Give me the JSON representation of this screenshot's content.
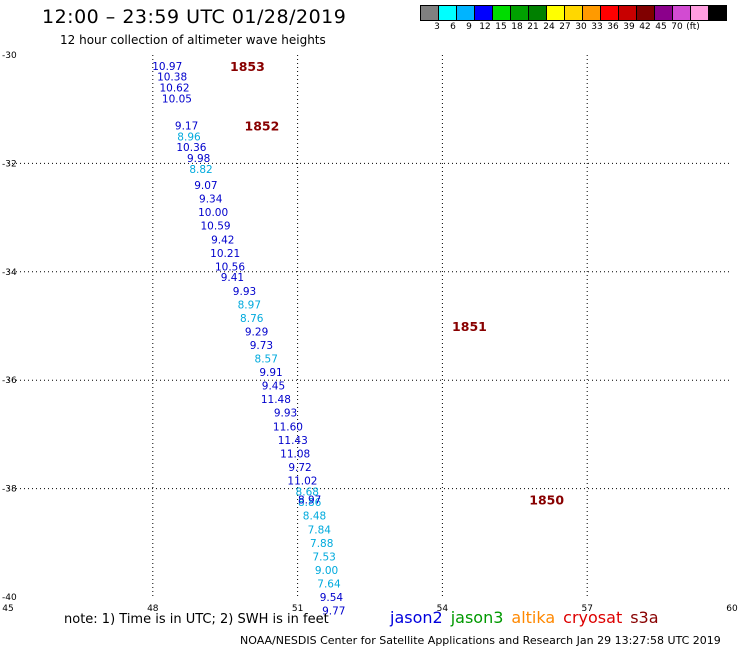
{
  "header": {
    "title": "12:00 – 23:59 UTC 01/28/2019",
    "subtitle": "12 hour collection of altimeter wave heights"
  },
  "legend": {
    "colors": [
      "#808080",
      "#00ffff",
      "#00b4ff",
      "#0000ff",
      "#00dc00",
      "#00a000",
      "#008000",
      "#ffff00",
      "#ffd700",
      "#ff9a00",
      "#ff0000",
      "#c80000",
      "#800000",
      "#8b008b",
      "#d24bd2",
      "#ff9ee0",
      "#000000"
    ],
    "labels": [
      "3",
      "6",
      "9",
      "12",
      "15",
      "18",
      "21",
      "24",
      "27",
      "30",
      "33",
      "36",
      "39",
      "42",
      "45",
      "70",
      "(ft)"
    ]
  },
  "note": "note:  1) Time is in UTC;  2) SWH is in feet",
  "satellites": [
    {
      "name": "jason2",
      "color": "#0000dd"
    },
    {
      "name": "jason3",
      "color": "#009900"
    },
    {
      "name": "altika",
      "color": "#ff8800"
    },
    {
      "name": "cryosat",
      "color": "#dd0000"
    },
    {
      "name": "s3a",
      "color": "#880000"
    }
  ],
  "footer": "NOAA/NESDIS Center for Satellite Applications and Research      Jan 29 13:27:58 UTC 2019",
  "chart_data": {
    "type": "scatter",
    "x_ticks": [
      "45",
      "48",
      "51",
      "54",
      "57",
      "60"
    ],
    "y_ticks": [
      "-30",
      "-32",
      "-34",
      "-36",
      "-38",
      "-40"
    ],
    "xlim": [
      45,
      60
    ],
    "ylim": [
      -40,
      -30
    ],
    "grid": true,
    "time_labels": [
      {
        "text": "1853",
        "lon": 49.6,
        "lat": -30.2
      },
      {
        "text": "1852",
        "lon": 49.9,
        "lat": -31.3
      },
      {
        "text": "1851",
        "lon": 54.2,
        "lat": -35.0
      },
      {
        "text": "1850",
        "lon": 55.8,
        "lat": -38.2
      }
    ],
    "points": [
      {
        "v": "10.97",
        "lon": 48.3,
        "lat": -30.2,
        "c": "#0000cc"
      },
      {
        "v": "10.38",
        "lon": 48.4,
        "lat": -30.4,
        "c": "#0000cc"
      },
      {
        "v": "10.62",
        "lon": 48.45,
        "lat": -30.6,
        "c": "#0000cc"
      },
      {
        "v": "10.05",
        "lon": 48.5,
        "lat": -30.8,
        "c": "#0000cc"
      },
      {
        "v": "9.17",
        "lon": 48.7,
        "lat": -31.3,
        "c": "#0000cc"
      },
      {
        "v": "8.96",
        "lon": 48.75,
        "lat": -31.5,
        "c": "#00aadd"
      },
      {
        "v": "10.36",
        "lon": 48.8,
        "lat": -31.7,
        "c": "#0000cc"
      },
      {
        "v": "9.98",
        "lon": 48.95,
        "lat": -31.9,
        "c": "#0000cc"
      },
      {
        "v": "8.82",
        "lon": 49.0,
        "lat": -32.1,
        "c": "#00aadd"
      },
      {
        "v": "9.07",
        "lon": 49.1,
        "lat": -32.4,
        "c": "#0000cc"
      },
      {
        "v": "9.34",
        "lon": 49.2,
        "lat": -32.65,
        "c": "#0000cc"
      },
      {
        "v": "10.00",
        "lon": 49.25,
        "lat": -32.9,
        "c": "#0000cc"
      },
      {
        "v": "10.59",
        "lon": 49.3,
        "lat": -33.15,
        "c": "#0000cc"
      },
      {
        "v": "9.42",
        "lon": 49.45,
        "lat": -33.4,
        "c": "#0000cc"
      },
      {
        "v": "10.21",
        "lon": 49.5,
        "lat": -33.65,
        "c": "#0000cc"
      },
      {
        "v": "10.56",
        "lon": 49.6,
        "lat": -33.9,
        "c": "#0000cc"
      },
      {
        "v": "9.41",
        "lon": 49.65,
        "lat": -34.1,
        "c": "#0000cc"
      },
      {
        "v": "9.93",
        "lon": 49.9,
        "lat": -34.35,
        "c": "#0000cc"
      },
      {
        "v": "8.97",
        "lon": 50.0,
        "lat": -34.6,
        "c": "#00aadd"
      },
      {
        "v": "8.76",
        "lon": 50.05,
        "lat": -34.85,
        "c": "#00aadd"
      },
      {
        "v": "9.29",
        "lon": 50.15,
        "lat": -35.1,
        "c": "#0000cc"
      },
      {
        "v": "9.73",
        "lon": 50.25,
        "lat": -35.35,
        "c": "#0000cc"
      },
      {
        "v": "8.57",
        "lon": 50.35,
        "lat": -35.6,
        "c": "#00aadd"
      },
      {
        "v": "9.91",
        "lon": 50.45,
        "lat": -35.85,
        "c": "#0000cc"
      },
      {
        "v": "9.45",
        "lon": 50.5,
        "lat": -36.1,
        "c": "#0000cc"
      },
      {
        "v": "11.48",
        "lon": 50.55,
        "lat": -36.35,
        "c": "#0000cc"
      },
      {
        "v": "9.93",
        "lon": 50.75,
        "lat": -36.6,
        "c": "#0000cc"
      },
      {
        "v": "11.60",
        "lon": 50.8,
        "lat": -36.85,
        "c": "#0000cc"
      },
      {
        "v": "11.43",
        "lon": 50.9,
        "lat": -37.1,
        "c": "#0000cc"
      },
      {
        "v": "11.08",
        "lon": 50.95,
        "lat": -37.35,
        "c": "#0000cc"
      },
      {
        "v": "9.72",
        "lon": 51.05,
        "lat": -37.6,
        "c": "#0000cc"
      },
      {
        "v": "11.02",
        "lon": 51.1,
        "lat": -37.85,
        "c": "#0000cc"
      },
      {
        "v": "8.68",
        "lon": 51.2,
        "lat": -38.05,
        "c": "#00aadd"
      },
      {
        "v": "8.86",
        "lon": 51.25,
        "lat": -38.25,
        "c": "#00aadd"
      },
      {
        "v": "8.97",
        "lon": 51.25,
        "lat": -38.2,
        "c": "#0000cc"
      },
      {
        "v": "8.48",
        "lon": 51.35,
        "lat": -38.5,
        "c": "#00aadd"
      },
      {
        "v": "7.84",
        "lon": 51.45,
        "lat": -38.75,
        "c": "#00aadd"
      },
      {
        "v": "7.88",
        "lon": 51.5,
        "lat": -39.0,
        "c": "#00aadd"
      },
      {
        "v": "7.53",
        "lon": 51.55,
        "lat": -39.25,
        "c": "#00aadd"
      },
      {
        "v": "9.00",
        "lon": 51.6,
        "lat": -39.5,
        "c": "#00aadd"
      },
      {
        "v": "7.64",
        "lon": 51.65,
        "lat": -39.75,
        "c": "#00aadd"
      },
      {
        "v": "9.54",
        "lon": 51.7,
        "lat": -40.0,
        "c": "#0000cc"
      },
      {
        "v": "9.77",
        "lon": 51.75,
        "lat": -40.25,
        "c": "#0000cc"
      }
    ]
  }
}
